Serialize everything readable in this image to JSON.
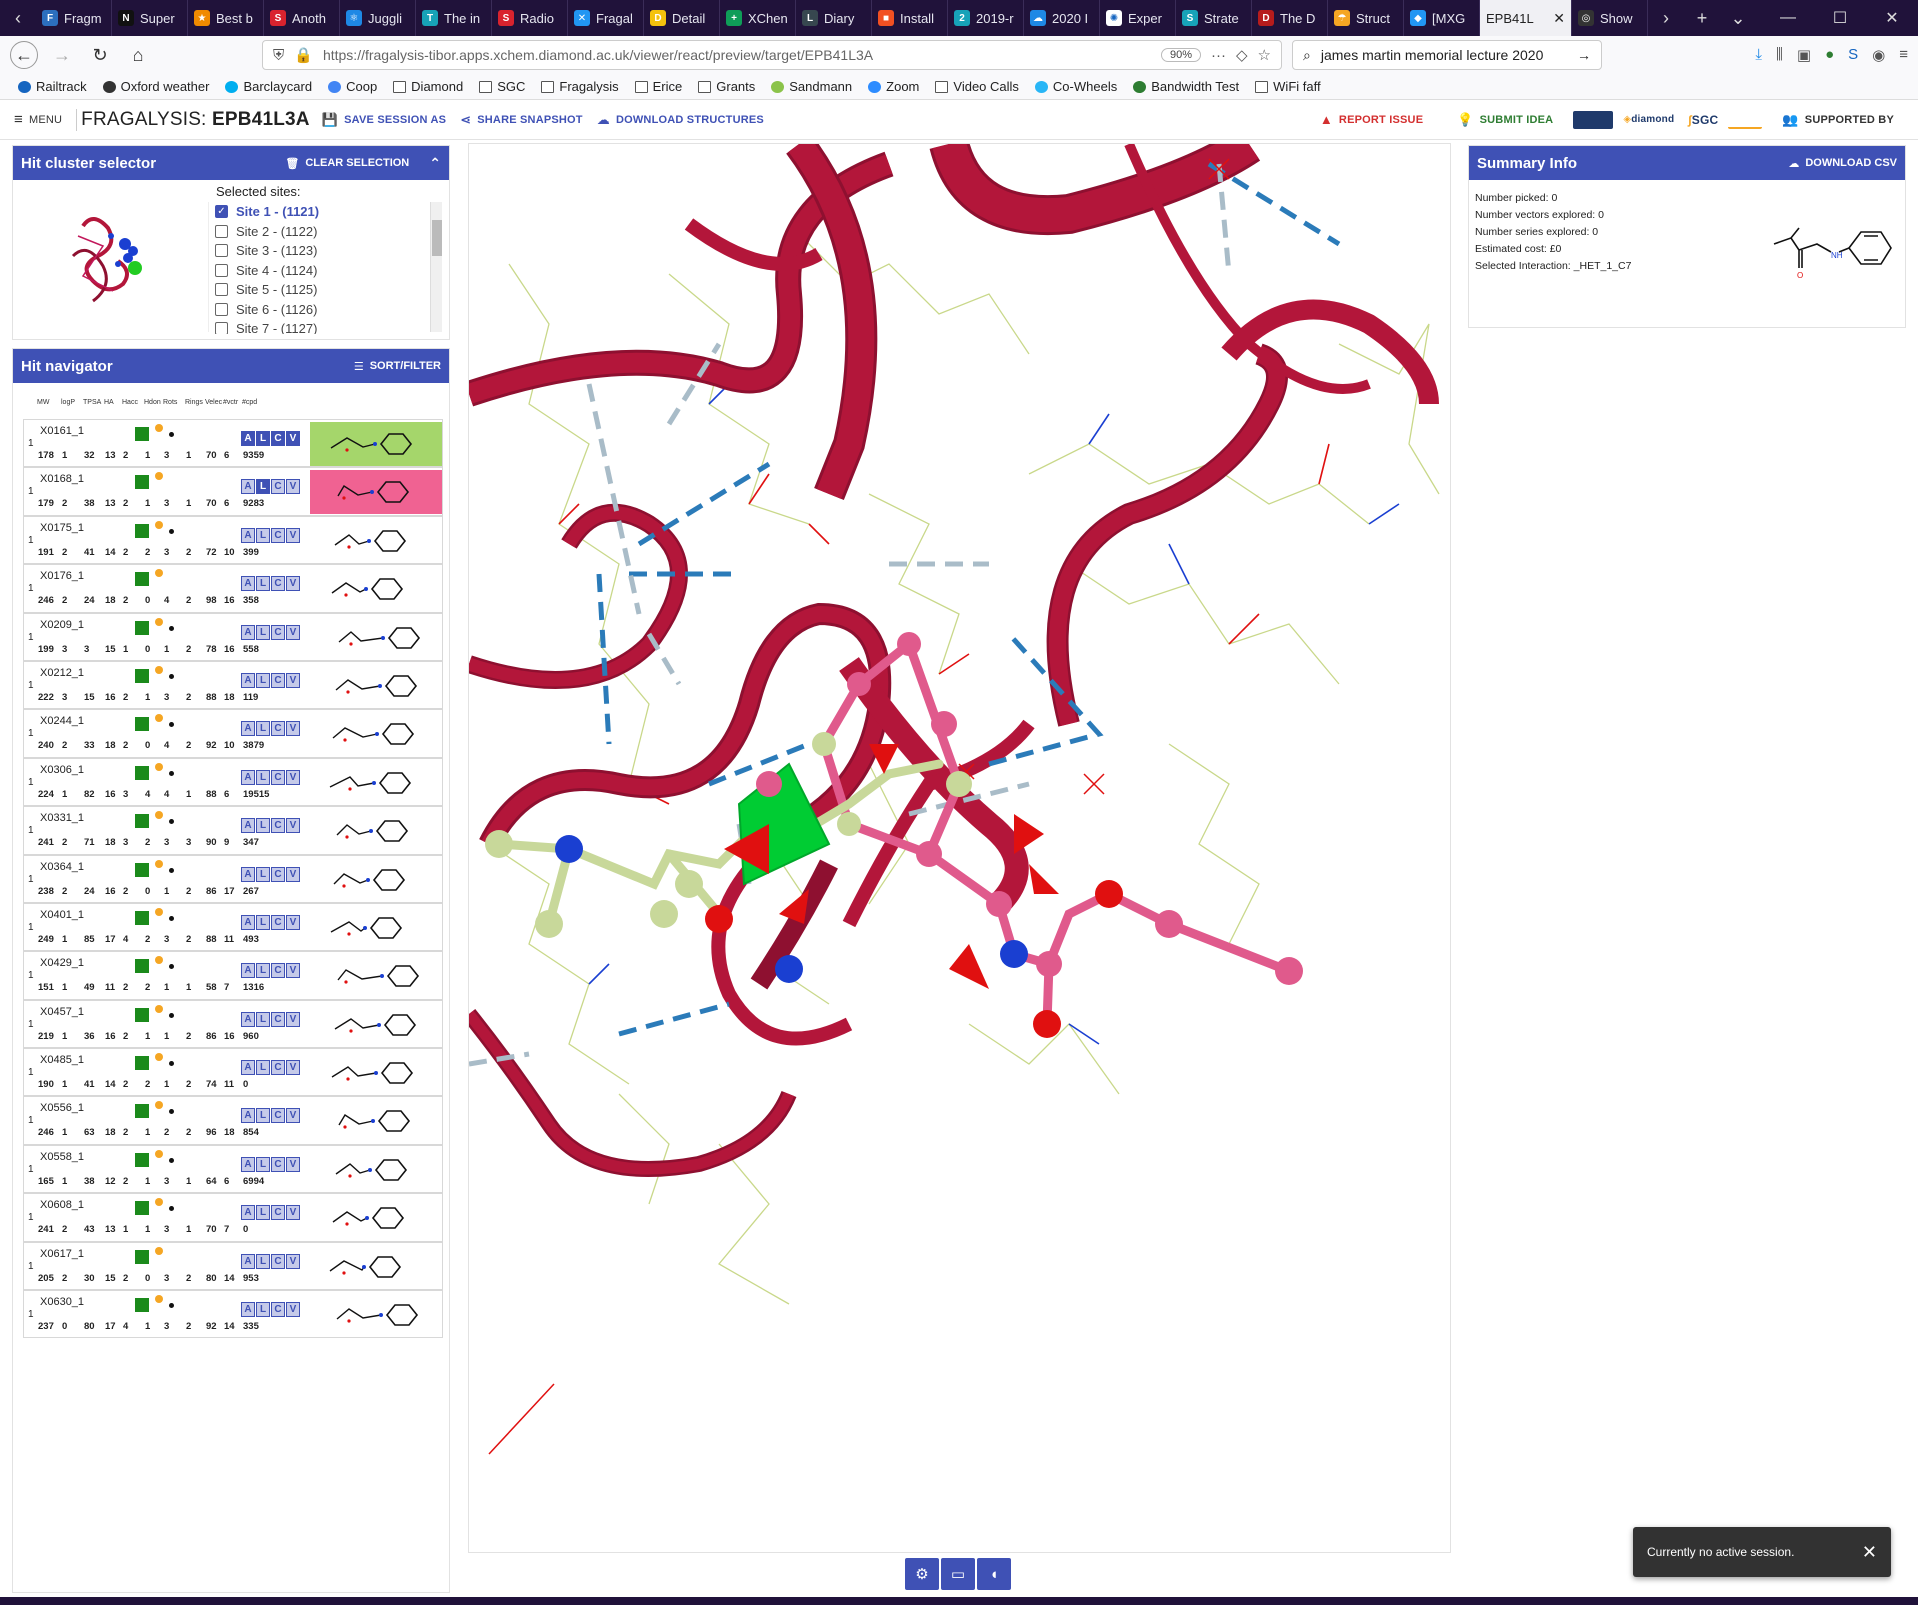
{
  "browser": {
    "tabs": [
      {
        "label": "Fragm",
        "color": "#2c6fbf",
        "glyph": "F"
      },
      {
        "label": "Super",
        "color": "#111",
        "glyph": "N"
      },
      {
        "label": "Best b",
        "color": "#f08a00",
        "glyph": "★"
      },
      {
        "label": "Anoth",
        "color": "#d9232e",
        "glyph": "S"
      },
      {
        "label": "Juggli",
        "color": "#1e88e5",
        "glyph": "⚛"
      },
      {
        "label": "The in",
        "color": "#17a2b8",
        "glyph": "T"
      },
      {
        "label": "Radio",
        "color": "#d9232e",
        "glyph": "S"
      },
      {
        "label": "Fragal",
        "color": "#2196f3",
        "glyph": "✕"
      },
      {
        "label": "Detail",
        "color": "#f4c20d",
        "glyph": "D"
      },
      {
        "label": "XChen",
        "color": "#0f9d58",
        "glyph": "+"
      },
      {
        "label": "Diary",
        "color": "#37474f",
        "glyph": "L"
      },
      {
        "label": "Install",
        "color": "#f25022",
        "glyph": "■"
      },
      {
        "label": "2019-r",
        "color": "#17a2b8",
        "glyph": "2"
      },
      {
        "label": "2020 I",
        "color": "#1e88e5",
        "glyph": "☁"
      },
      {
        "label": "Exper",
        "color": "#fff",
        "glyph": "✺"
      },
      {
        "label": "Strate",
        "color": "#17a2b8",
        "glyph": "S"
      },
      {
        "label": "The D",
        "color": "#b71c1c",
        "glyph": "D"
      },
      {
        "label": "Struct",
        "color": "#f5a623",
        "glyph": "☂"
      },
      {
        "label": "[MXG",
        "color": "#2196f3",
        "glyph": "◆"
      },
      {
        "label": "EPB41L",
        "color": "#eee",
        "glyph": ""
      },
      {
        "label": "Show",
        "color": "#333",
        "glyph": "◎"
      }
    ],
    "url": "https://fragalysis-tibor.apps.xchem.diamond.ac.uk/viewer/react/preview/target/EPB41L3A",
    "zoom": "90%",
    "search_value": "james martin memorial lecture 2020",
    "bookmarks": [
      {
        "label": "Railtrack",
        "kind": "icon",
        "color": "#1565c0"
      },
      {
        "label": "Oxford weather",
        "kind": "icon",
        "color": "#333"
      },
      {
        "label": "Barclaycard",
        "kind": "icon",
        "color": "#00aeef"
      },
      {
        "label": "Coop",
        "kind": "icon",
        "color": "#4285f4"
      },
      {
        "label": "Diamond",
        "kind": "folder"
      },
      {
        "label": "SGC",
        "kind": "folder"
      },
      {
        "label": "Fragalysis",
        "kind": "folder"
      },
      {
        "label": "Erice",
        "kind": "folder"
      },
      {
        "label": "Grants",
        "kind": "folder"
      },
      {
        "label": "Sandmann",
        "kind": "icon",
        "color": "#8bc34a"
      },
      {
        "label": "Zoom",
        "kind": "icon",
        "color": "#2d8cff"
      },
      {
        "label": "Video Calls",
        "kind": "folder"
      },
      {
        "label": "Co-Wheels",
        "kind": "icon",
        "color": "#29b6f6"
      },
      {
        "label": "Bandwidth Test",
        "kind": "icon",
        "color": "#2e7d32"
      },
      {
        "label": "WiFi faff",
        "kind": "folder"
      }
    ]
  },
  "app": {
    "menu_label": "MENU",
    "brand_prefix": "FRAGALYSIS: ",
    "brand_target": "EPB41L3A",
    "save_label": "SAVE SESSION AS",
    "share_label": "SHARE SNAPSHOT",
    "download_label": "DOWNLOAD STRUCTURES",
    "report_label": "REPORT ISSUE",
    "idea_label": "SUBMIT IDEA",
    "logo_diamond": "diamond",
    "logo_sgc": "SGC",
    "supported_label": "SUPPORTED BY"
  },
  "hit_cluster": {
    "title": "Hit cluster selector",
    "clear_label": "CLEAR SELECTION",
    "sites_label": "Selected sites:",
    "sites": [
      {
        "label": "Site 1 - (1121)",
        "checked": true
      },
      {
        "label": "Site 2 - (1122)",
        "checked": false
      },
      {
        "label": "Site 3 - (1123)",
        "checked": false
      },
      {
        "label": "Site 4 - (1124)",
        "checked": false
      },
      {
        "label": "Site 5 - (1125)",
        "checked": false
      },
      {
        "label": "Site 6 - (1126)",
        "checked": false
      },
      {
        "label": "Site 7 - (1127)",
        "checked": false
      }
    ]
  },
  "hit_navigator": {
    "title": "Hit navigator",
    "sort_label": "SORT/FILTER",
    "columns": [
      "MW",
      "logP",
      "TPSA",
      "HA",
      "Hacc",
      "Hdon",
      "Rots",
      "Rings",
      "Velec",
      "#vctr",
      "#cpd"
    ],
    "alcv": [
      "A",
      "L",
      "C",
      "V"
    ],
    "rows": [
      {
        "num": "1",
        "code": "X0161_1",
        "stats": [
          "178",
          "1",
          "32",
          "13",
          "2",
          "1",
          "3",
          "1",
          "70",
          "6",
          "9359"
        ],
        "dot": true,
        "bg": "#a5d66b",
        "on": [
          0,
          1,
          2,
          3
        ]
      },
      {
        "num": "1",
        "code": "X0168_1",
        "stats": [
          "179",
          "2",
          "38",
          "13",
          "2",
          "1",
          "3",
          "1",
          "70",
          "6",
          "9283"
        ],
        "dot": false,
        "bg": "#f06292",
        "on": [
          1
        ]
      },
      {
        "num": "1",
        "code": "X0175_1",
        "stats": [
          "191",
          "2",
          "41",
          "14",
          "2",
          "2",
          "3",
          "2",
          "72",
          "10",
          "399"
        ],
        "dot": true,
        "bg": "",
        "on": []
      },
      {
        "num": "1",
        "code": "X0176_1",
        "stats": [
          "246",
          "2",
          "24",
          "18",
          "2",
          "0",
          "4",
          "2",
          "98",
          "16",
          "358"
        ],
        "dot": false,
        "bg": "",
        "on": []
      },
      {
        "num": "1",
        "code": "X0209_1",
        "stats": [
          "199",
          "3",
          "3",
          "15",
          "1",
          "0",
          "1",
          "2",
          "78",
          "16",
          "558"
        ],
        "dot": true,
        "bg": "",
        "on": []
      },
      {
        "num": "1",
        "code": "X0212_1",
        "stats": [
          "222",
          "3",
          "15",
          "16",
          "2",
          "1",
          "3",
          "2",
          "88",
          "18",
          "119"
        ],
        "dot": true,
        "bg": "",
        "on": []
      },
      {
        "num": "1",
        "code": "X0244_1",
        "stats": [
          "240",
          "2",
          "33",
          "18",
          "2",
          "0",
          "4",
          "2",
          "92",
          "10",
          "3879"
        ],
        "dot": true,
        "bg": "",
        "on": []
      },
      {
        "num": "1",
        "code": "X0306_1",
        "stats": [
          "224",
          "1",
          "82",
          "16",
          "3",
          "4",
          "4",
          "1",
          "88",
          "6",
          "19515"
        ],
        "dot": true,
        "bg": "",
        "on": []
      },
      {
        "num": "1",
        "code": "X0331_1",
        "stats": [
          "241",
          "2",
          "71",
          "18",
          "3",
          "2",
          "3",
          "3",
          "90",
          "9",
          "347"
        ],
        "dot": true,
        "bg": "",
        "on": []
      },
      {
        "num": "1",
        "code": "X0364_1",
        "stats": [
          "238",
          "2",
          "24",
          "16",
          "2",
          "0",
          "1",
          "2",
          "86",
          "17",
          "267"
        ],
        "dot": true,
        "bg": "",
        "on": []
      },
      {
        "num": "1",
        "code": "X0401_1",
        "stats": [
          "249",
          "1",
          "85",
          "17",
          "4",
          "2",
          "3",
          "2",
          "88",
          "11",
          "493"
        ],
        "dot": true,
        "bg": "",
        "on": []
      },
      {
        "num": "1",
        "code": "X0429_1",
        "stats": [
          "151",
          "1",
          "49",
          "11",
          "2",
          "2",
          "1",
          "1",
          "58",
          "7",
          "1316"
        ],
        "dot": true,
        "bg": "",
        "on": []
      },
      {
        "num": "1",
        "code": "X0457_1",
        "stats": [
          "219",
          "1",
          "36",
          "16",
          "2",
          "1",
          "1",
          "2",
          "86",
          "16",
          "960"
        ],
        "dot": true,
        "bg": "",
        "on": []
      },
      {
        "num": "1",
        "code": "X0485_1",
        "stats": [
          "190",
          "1",
          "41",
          "14",
          "2",
          "2",
          "1",
          "2",
          "74",
          "11",
          "0"
        ],
        "dot": true,
        "bg": "",
        "on": []
      },
      {
        "num": "1",
        "code": "X0556_1",
        "stats": [
          "246",
          "1",
          "63",
          "18",
          "2",
          "1",
          "2",
          "2",
          "96",
          "18",
          "854"
        ],
        "dot": true,
        "bg": "",
        "on": []
      },
      {
        "num": "1",
        "code": "X0558_1",
        "stats": [
          "165",
          "1",
          "38",
          "12",
          "2",
          "1",
          "3",
          "1",
          "64",
          "6",
          "6994"
        ],
        "dot": true,
        "bg": "",
        "on": []
      },
      {
        "num": "1",
        "code": "X0608_1",
        "stats": [
          "241",
          "2",
          "43",
          "13",
          "1",
          "1",
          "3",
          "1",
          "70",
          "7",
          "0"
        ],
        "dot": true,
        "bg": "",
        "on": []
      },
      {
        "num": "1",
        "code": "X0617_1",
        "stats": [
          "205",
          "2",
          "30",
          "15",
          "2",
          "0",
          "3",
          "2",
          "80",
          "14",
          "953"
        ],
        "dot": false,
        "bg": "",
        "on": []
      },
      {
        "num": "1",
        "code": "X0630_1",
        "stats": [
          "237",
          "0",
          "80",
          "17",
          "4",
          "1",
          "3",
          "2",
          "92",
          "14",
          "335"
        ],
        "dot": true,
        "bg": "",
        "on": []
      }
    ]
  },
  "summary": {
    "title": "Summary Info",
    "download_label": "DOWNLOAD CSV",
    "lines": [
      "Number picked: 0",
      "Number vectors explored: 0",
      "Number series explored: 0",
      "Estimated cost: £0",
      "Selected Interaction: _HET_1_C7"
    ],
    "mol_nh": "NH",
    "mol_o": "O"
  },
  "viewer_toolbar": [
    "gear-icon",
    "monitor-icon",
    "mouse-icon"
  ],
  "toast": {
    "text": "Currently no active session."
  },
  "colors": {
    "primary": "#3f51b5",
    "ribbon": "#b3163a",
    "ligand_pink": "#e05a8c",
    "ligand_green": "#c8d89a",
    "nitrogen": "#1a3fd1",
    "oxygen": "#e01010"
  }
}
